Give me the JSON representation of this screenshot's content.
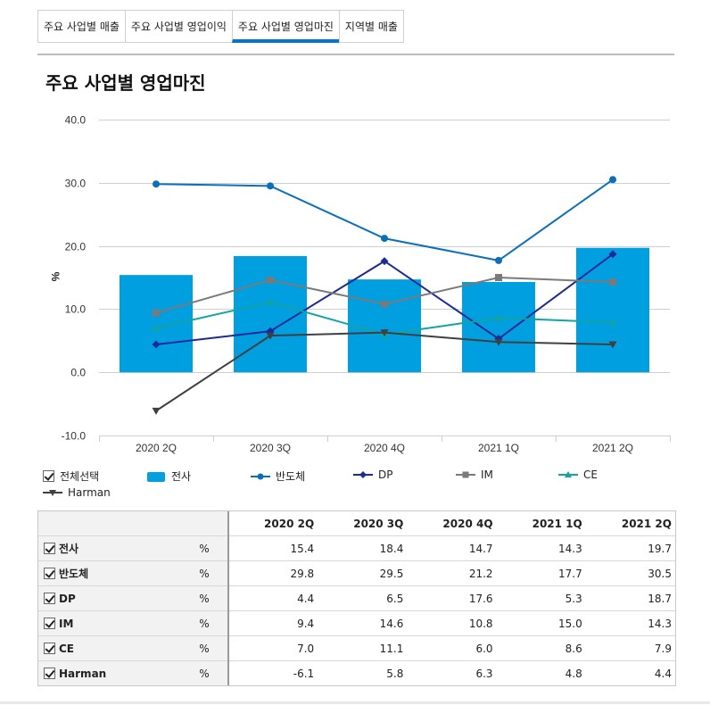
{
  "tabs": [
    {
      "label": "주요 사업별 매출"
    },
    {
      "label": "주요 사업별 영업이익"
    },
    {
      "label": "주요 사업별 영업마진"
    },
    {
      "label": "지역별 매출"
    }
  ],
  "active_tab": 2,
  "page_title": "주요 사업별 영업마진",
  "legend": {
    "select_all_label": "전체선택",
    "items": [
      "전사",
      "반도체",
      "DP",
      "IM",
      "CE",
      "Harman"
    ]
  },
  "colors": {
    "전사": "#009fe0",
    "반도체": "#0a6fbd",
    "DP": "#1c2a99",
    "IM": "#7a7a7a",
    "CE": "#12a3a3",
    "Harman": "#404040",
    "tab_accent": "#0a73c6"
  },
  "chart_data": {
    "type": "bar",
    "categories": [
      "2020 2Q",
      "2020 3Q",
      "2020 4Q",
      "2021 1Q",
      "2021 2Q"
    ],
    "ylabel": "%",
    "ylim": [
      -10,
      40
    ],
    "yticks": [
      "40.0",
      "30.0",
      "20.0",
      "10.0",
      "0.0",
      "-10.0"
    ],
    "grid": true,
    "legend_position": "bottom",
    "series": [
      {
        "name": "전사",
        "type": "bar",
        "marker": "none",
        "values": [
          15.4,
          18.4,
          14.7,
          14.3,
          19.7
        ]
      },
      {
        "name": "반도체",
        "type": "line",
        "marker": "circle",
        "values": [
          29.8,
          29.5,
          21.2,
          17.7,
          30.5
        ]
      },
      {
        "name": "DP",
        "type": "line",
        "marker": "diamond",
        "values": [
          4.4,
          6.5,
          17.6,
          5.3,
          18.7
        ]
      },
      {
        "name": "IM",
        "type": "line",
        "marker": "square",
        "values": [
          9.4,
          14.6,
          10.8,
          15.0,
          14.3
        ]
      },
      {
        "name": "CE",
        "type": "line",
        "marker": "triangle-up",
        "values": [
          7.0,
          11.1,
          6.0,
          8.6,
          7.9
        ]
      },
      {
        "name": "Harman",
        "type": "line",
        "marker": "triangle-down",
        "values": [
          -6.1,
          5.8,
          6.3,
          4.8,
          4.4
        ]
      }
    ]
  },
  "table": {
    "columns": [
      "2020 2Q",
      "2020 3Q",
      "2020 4Q",
      "2021 1Q",
      "2021 2Q"
    ],
    "rows": [
      {
        "name": "전사",
        "unit": "%",
        "values": [
          "15.4",
          "18.4",
          "14.7",
          "14.3",
          "19.7"
        ]
      },
      {
        "name": "반도체",
        "unit": "%",
        "values": [
          "29.8",
          "29.5",
          "21.2",
          "17.7",
          "30.5"
        ]
      },
      {
        "name": "DP",
        "unit": "%",
        "values": [
          "4.4",
          "6.5",
          "17.6",
          "5.3",
          "18.7"
        ]
      },
      {
        "name": "IM",
        "unit": "%",
        "values": [
          "9.4",
          "14.6",
          "10.8",
          "15.0",
          "14.3"
        ]
      },
      {
        "name": "CE",
        "unit": "%",
        "values": [
          "7.0",
          "11.1",
          "6.0",
          "8.6",
          "7.9"
        ]
      },
      {
        "name": "Harman",
        "unit": "%",
        "values": [
          "-6.1",
          "5.8",
          "6.3",
          "4.8",
          "4.4"
        ]
      }
    ]
  }
}
